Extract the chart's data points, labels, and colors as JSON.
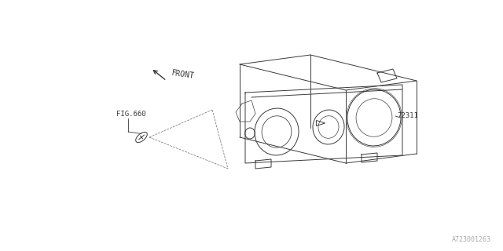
{
  "bg_color": "#ffffff",
  "line_color": "#3a3a3a",
  "label_72311": "72311",
  "label_fig660": "FIG.660",
  "label_front": "FRONT",
  "label_diagnum": "A723001263",
  "fig_size": [
    6.4,
    3.2
  ],
  "dpi": 100
}
